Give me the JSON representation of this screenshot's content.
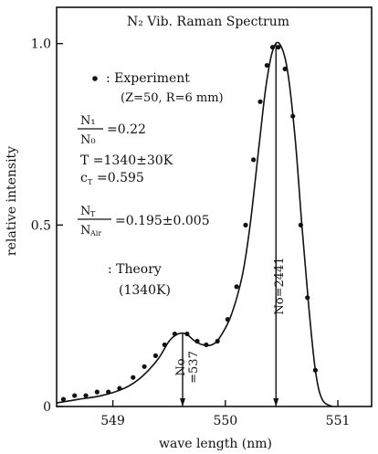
{
  "chart_data": {
    "type": "scatter",
    "title": "N₂ Vib. Raman Spectrum",
    "xlabel": "wave length (nm)",
    "ylabel": "relative intensity",
    "xlim": [
      548.5,
      551.3
    ],
    "ylim": [
      0,
      1.1
    ],
    "xticks": [
      549,
      550,
      551
    ],
    "xtick_labels": [
      "549",
      "550",
      "551"
    ],
    "yticks": [
      0,
      0.5,
      1.0
    ],
    "ytick_labels": [
      "0",
      "0.5",
      "1.0"
    ],
    "series": [
      {
        "name": "Experiment",
        "marker": "dot",
        "x": [
          548.56,
          548.66,
          548.76,
          548.86,
          548.96,
          549.06,
          549.18,
          549.28,
          549.38,
          549.46,
          549.55,
          549.66,
          549.75,
          549.83,
          549.93,
          550.02,
          550.1,
          550.18,
          550.25,
          550.31,
          550.37,
          550.42,
          550.47,
          550.53,
          550.6,
          550.67,
          550.73,
          550.8
        ],
        "y": [
          0.02,
          0.03,
          0.03,
          0.04,
          0.04,
          0.05,
          0.08,
          0.11,
          0.14,
          0.17,
          0.2,
          0.2,
          0.18,
          0.17,
          0.18,
          0.24,
          0.33,
          0.5,
          0.68,
          0.84,
          0.94,
          0.99,
          0.99,
          0.93,
          0.8,
          0.5,
          0.3,
          0.1
        ]
      },
      {
        "name": "Theory",
        "style": "line",
        "x": [
          548.5,
          548.7,
          548.9,
          549.1,
          549.25,
          549.4,
          549.5,
          549.58,
          549.65,
          549.73,
          549.8,
          549.88,
          549.95,
          550.05,
          550.15,
          550.22,
          550.3,
          550.36,
          550.42,
          550.48,
          550.55,
          550.62,
          550.68,
          550.74,
          550.8,
          550.86,
          550.95
        ],
        "y": [
          0.01,
          0.02,
          0.03,
          0.05,
          0.08,
          0.13,
          0.18,
          0.2,
          0.2,
          0.18,
          0.17,
          0.17,
          0.19,
          0.25,
          0.36,
          0.5,
          0.72,
          0.88,
          0.98,
          1.0,
          0.93,
          0.74,
          0.5,
          0.28,
          0.1,
          0.02,
          0.0
        ]
      }
    ],
    "peaks": [
      {
        "x": 549.62,
        "label_line1": "No",
        "label_line2": "=537"
      },
      {
        "x": 550.45,
        "label": "No=2441"
      }
    ],
    "legend": {
      "experiment_label": ": Experiment",
      "experiment_sub": "(Z=50, R=6 mm)",
      "theory_label": ": Theory",
      "theory_sub": "(1340K)",
      "ratio1_num": "N₁",
      "ratio1_den": "N₀",
      "ratio1_value": "=0.22",
      "temp": "T  =1340±30K",
      "ct": "c",
      "ct_sub": "T",
      "ct_value": "=0.595",
      "ratio2_num": "N",
      "ratio2_num_sub": "T",
      "ratio2_den": "N",
      "ratio2_den_sub": "Air",
      "ratio2_value": "=0.195±0.005"
    }
  }
}
